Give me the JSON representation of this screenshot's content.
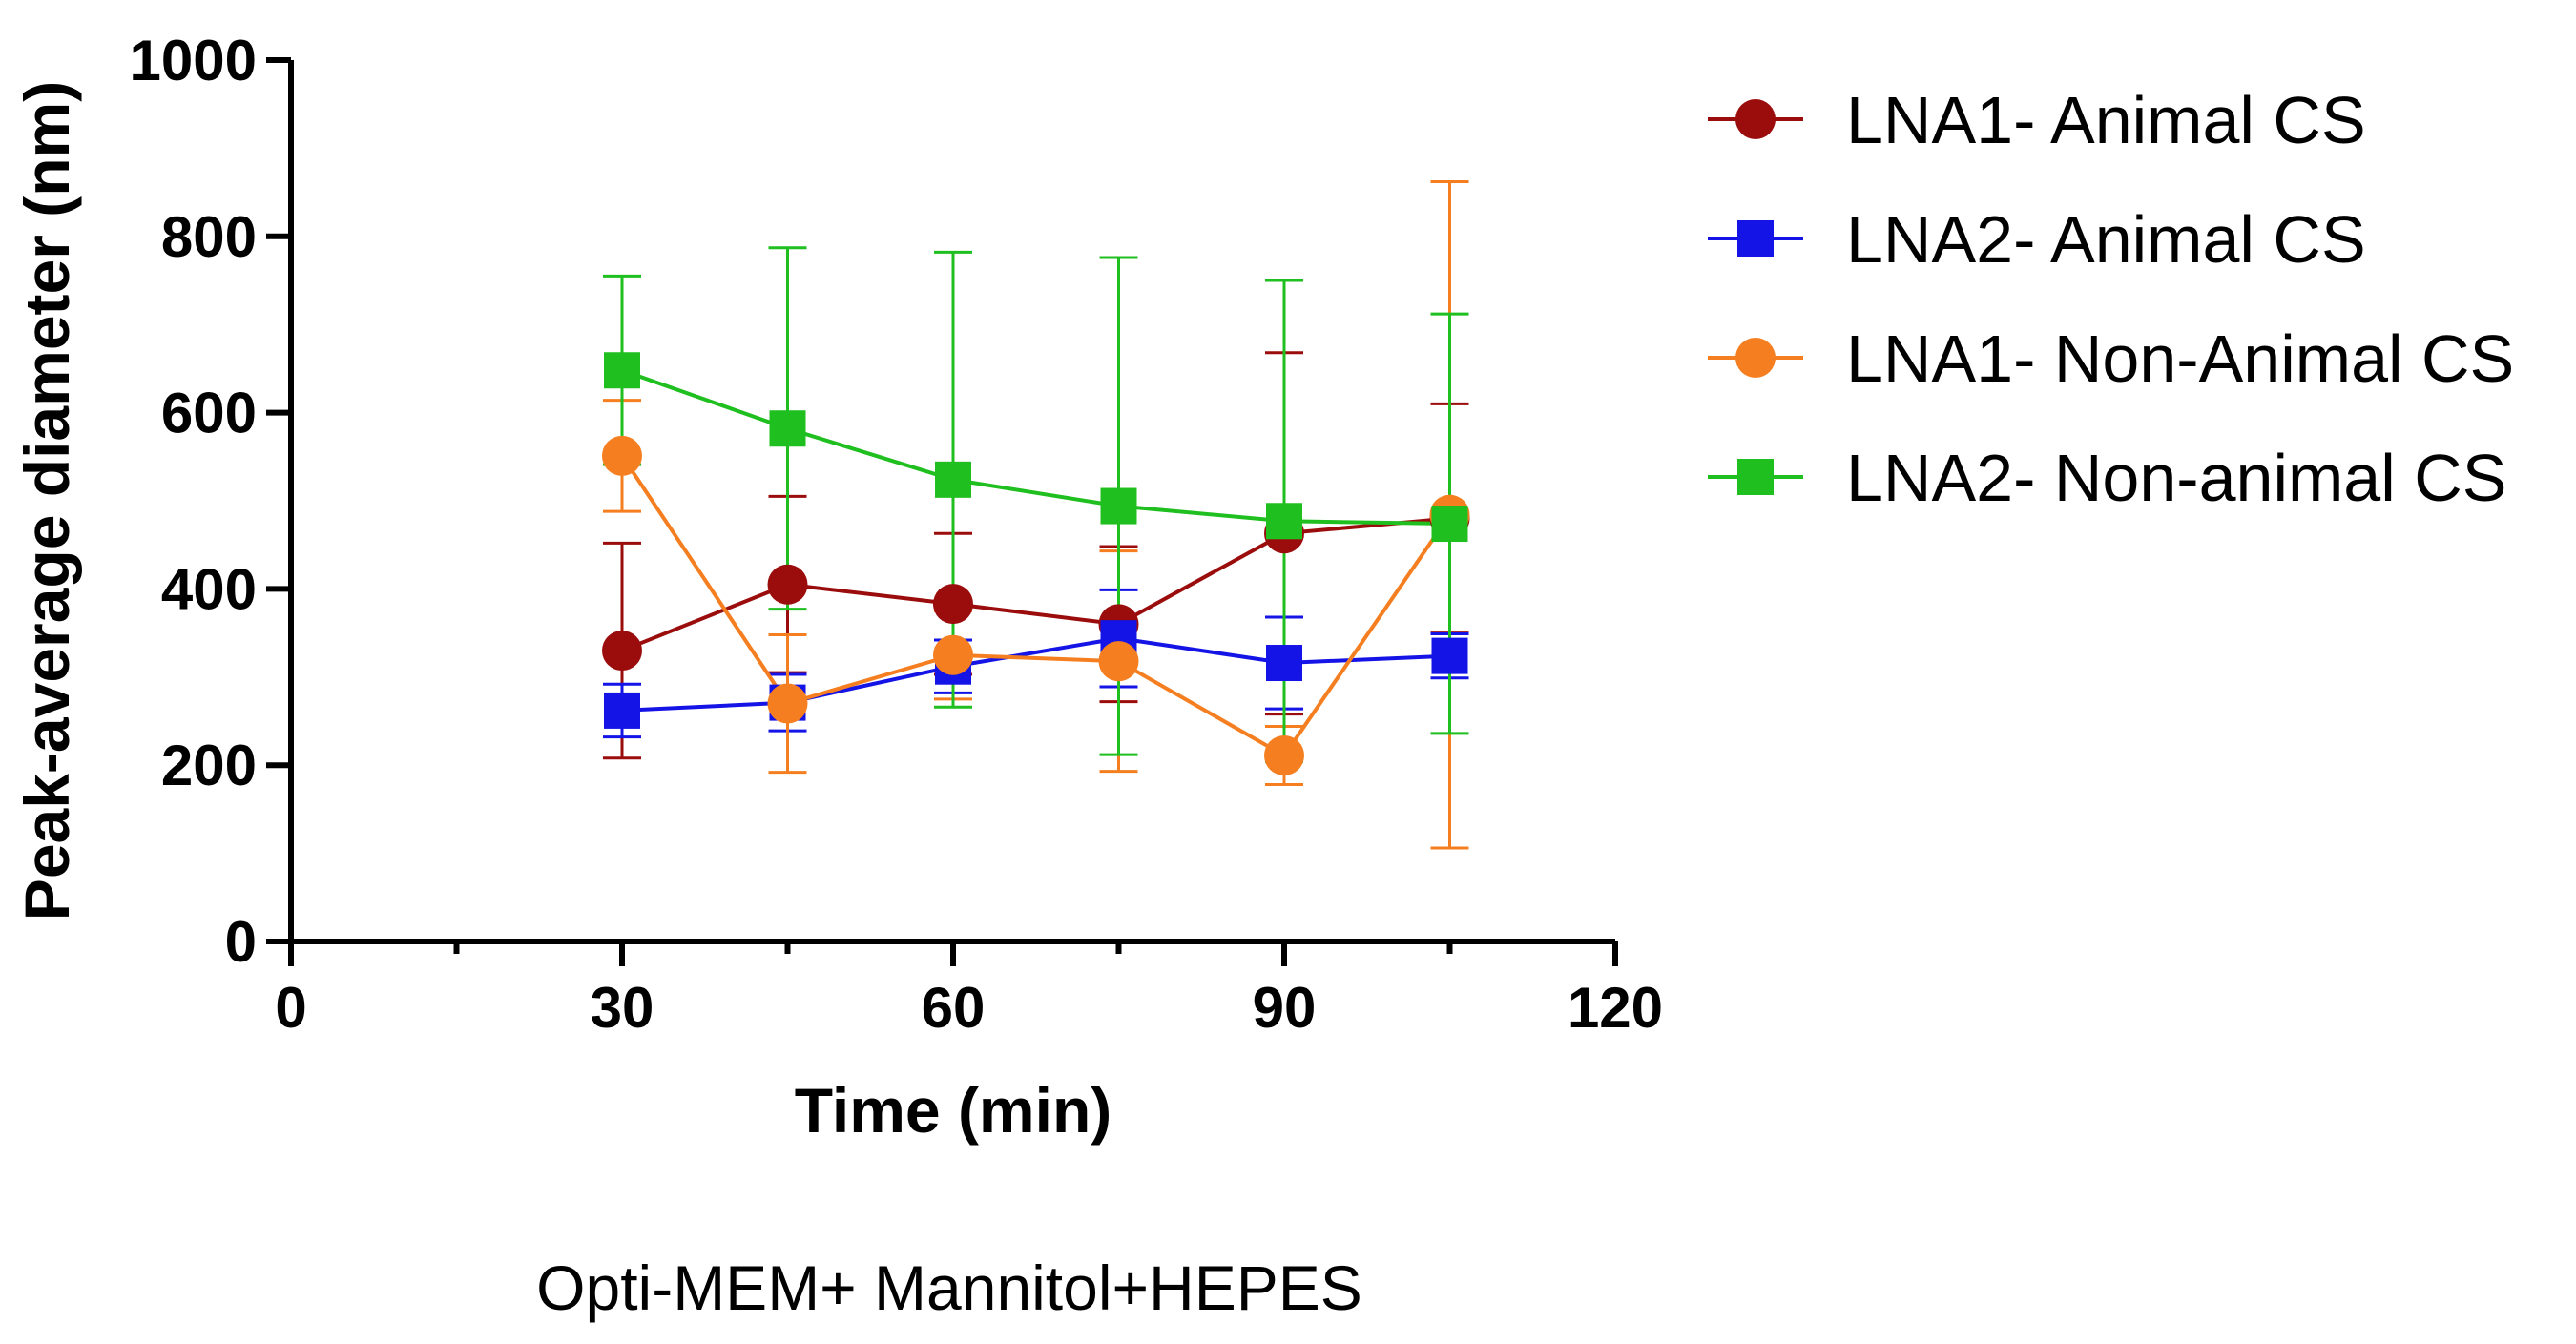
{
  "chart_data": {
    "type": "line",
    "title": "",
    "xlabel": "Time (min)",
    "ylabel": "Peak-average diameter (nm)",
    "caption": "Opti-MEM+ Mannitol+HEPES",
    "xlim": [
      0,
      120
    ],
    "ylim": [
      0,
      1000
    ],
    "xticks": [
      0,
      30,
      60,
      90,
      120
    ],
    "xticks_minor": [
      15,
      45,
      75,
      105
    ],
    "yticks": [
      0,
      200,
      400,
      600,
      800,
      1000
    ],
    "grid": false,
    "legend_position": "top-right",
    "x": [
      30,
      45,
      60,
      75,
      90,
      105
    ],
    "series": [
      {
        "name": "LNA1- Animal CS",
        "color": "#9b0d0d",
        "marker": "circle",
        "values": [
          330,
          405,
          383,
          360,
          463,
          480
        ],
        "error": [
          122,
          100,
          80,
          88,
          205,
          130
        ]
      },
      {
        "name": "LNA2- Animal CS",
        "color": "#1414e6",
        "marker": "square",
        "values": [
          262,
          271,
          312,
          344,
          316,
          324
        ],
        "error": [
          30,
          32,
          30,
          55,
          52,
          25
        ]
      },
      {
        "name": "LNA1- Non-Animal CS",
        "color": "#f57f20",
        "marker": "circle",
        "values": [
          551,
          270,
          325,
          318,
          211,
          484
        ],
        "error": [
          63,
          78,
          50,
          125,
          33,
          378
        ]
      },
      {
        "name": "LNA2- Non-animal CS",
        "color": "#1fbf1f",
        "marker": "square",
        "values": [
          648,
          582,
          524,
          494,
          477,
          474
        ],
        "error": [
          107,
          205,
          258,
          282,
          273,
          238
        ]
      }
    ]
  }
}
